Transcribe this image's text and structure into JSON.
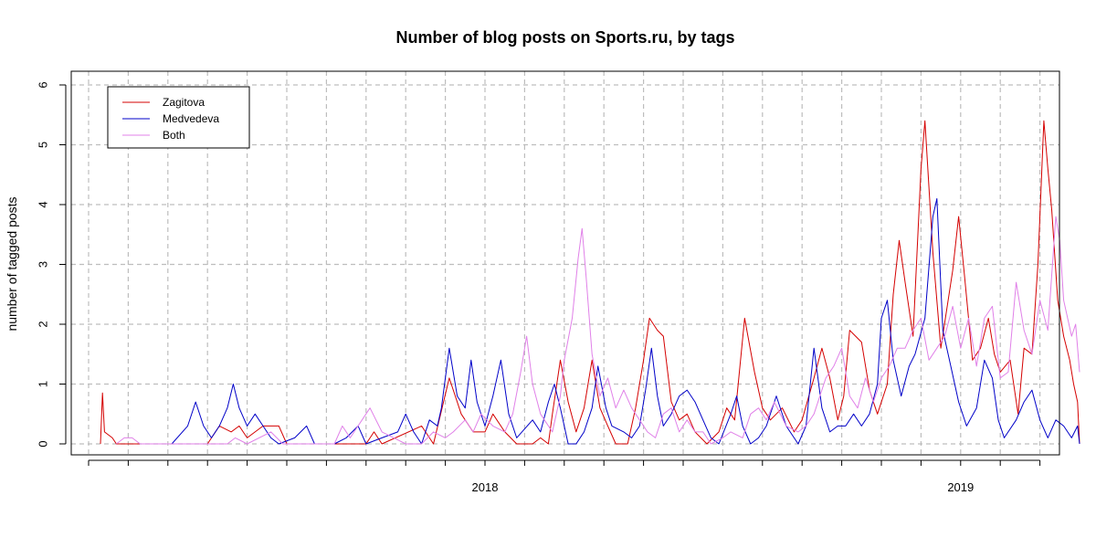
{
  "chart_data": {
    "type": "line",
    "title": "Number of blog posts on Sports.ru, by tags",
    "xlabel": "",
    "ylabel": "number of tagged posts",
    "x_tick_labels": [
      "2018",
      "2019"
    ],
    "y_ticks": [
      0,
      1,
      2,
      3,
      4,
      5,
      6
    ],
    "ylim": [
      0,
      6
    ],
    "grid": true,
    "legend_position": "top-left",
    "x_axis": "month index, 0 = Jan 2018",
    "series": [
      {
        "name": "Zagitova",
        "color": "#d40000",
        "points": [
          [
            -9.7,
            0
          ],
          [
            -9.65,
            0.85
          ],
          [
            -9.6,
            0.2
          ],
          [
            -9.4,
            0.1
          ],
          [
            -9.3,
            0
          ],
          [
            -8,
            0
          ],
          [
            -7,
            0
          ],
          [
            -6.7,
            0.3
          ],
          [
            -6.4,
            0.2
          ],
          [
            -6.2,
            0.3
          ],
          [
            -6,
            0.1
          ],
          [
            -5.6,
            0.3
          ],
          [
            -5.2,
            0.3
          ],
          [
            -5,
            0
          ],
          [
            -4,
            0
          ],
          [
            -3,
            0
          ],
          [
            -2.8,
            0.2
          ],
          [
            -2.6,
            0
          ],
          [
            -1.6,
            0.3
          ],
          [
            -1.3,
            0
          ],
          [
            -0.9,
            1.1
          ],
          [
            -0.6,
            0.5
          ],
          [
            -0.3,
            0.2
          ],
          [
            0,
            0.2
          ],
          [
            0.2,
            0.5
          ],
          [
            0.5,
            0.2
          ],
          [
            0.8,
            0
          ],
          [
            1.2,
            0
          ],
          [
            1.4,
            0.1
          ],
          [
            1.6,
            0
          ],
          [
            1.7,
            0.5
          ],
          [
            1.9,
            1.4
          ],
          [
            2.1,
            0.7
          ],
          [
            2.3,
            0.2
          ],
          [
            2.5,
            0.6
          ],
          [
            2.7,
            1.4
          ],
          [
            2.9,
            0.6
          ],
          [
            3.1,
            0.3
          ],
          [
            3.3,
            0
          ],
          [
            3.6,
            0
          ],
          [
            3.8,
            0.6
          ],
          [
            4,
            1.4
          ],
          [
            4.15,
            2.1
          ],
          [
            4.35,
            1.9
          ],
          [
            4.5,
            1.8
          ],
          [
            4.7,
            0.7
          ],
          [
            4.9,
            0.4
          ],
          [
            5.1,
            0.5
          ],
          [
            5.3,
            0.2
          ],
          [
            5.6,
            0
          ],
          [
            5.9,
            0.2
          ],
          [
            6.1,
            0.6
          ],
          [
            6.3,
            0.4
          ],
          [
            6.55,
            2.1
          ],
          [
            6.8,
            1.2
          ],
          [
            7,
            0.6
          ],
          [
            7.2,
            0.4
          ],
          [
            7.5,
            0.6
          ],
          [
            7.8,
            0.2
          ],
          [
            8,
            0.4
          ],
          [
            8.3,
            1.1
          ],
          [
            8.5,
            1.6
          ],
          [
            8.7,
            1.1
          ],
          [
            8.9,
            0.4
          ],
          [
            9.05,
            0.8
          ],
          [
            9.2,
            1.9
          ],
          [
            9.5,
            1.7
          ],
          [
            9.7,
            0.9
          ],
          [
            9.9,
            0.5
          ],
          [
            10.15,
            1
          ],
          [
            10.3,
            2.5
          ],
          [
            10.45,
            3.4
          ],
          [
            10.6,
            2.7
          ],
          [
            10.8,
            1.8
          ],
          [
            11,
            4.6
          ],
          [
            11.1,
            5.4
          ],
          [
            11.3,
            3.2
          ],
          [
            11.5,
            1.6
          ],
          [
            11.8,
            2.9
          ],
          [
            11.95,
            3.8
          ],
          [
            12.1,
            2.8
          ],
          [
            12.3,
            1.4
          ],
          [
            12.5,
            1.6
          ],
          [
            12.7,
            2.1
          ],
          [
            12.85,
            1.5
          ],
          [
            13,
            1.2
          ],
          [
            13.25,
            1.4
          ],
          [
            13.45,
            0.5
          ],
          [
            13.6,
            1.6
          ],
          [
            13.8,
            1.5
          ],
          [
            13.95,
            3
          ],
          [
            14.1,
            5.4
          ],
          [
            14.2,
            4.6
          ],
          [
            14.3,
            3.9
          ],
          [
            14.45,
            2.4
          ],
          [
            14.6,
            1.8
          ],
          [
            14.75,
            1.4
          ],
          [
            14.85,
            1
          ],
          [
            14.95,
            0.7
          ],
          [
            15,
            0
          ]
        ]
      },
      {
        "name": "Medvedeva",
        "color": "#0000c8",
        "points": [
          [
            -7.9,
            0
          ],
          [
            -7.5,
            0.3
          ],
          [
            -7.3,
            0.7
          ],
          [
            -7.1,
            0.3
          ],
          [
            -6.9,
            0.1
          ],
          [
            -6.7,
            0.3
          ],
          [
            -6.5,
            0.6
          ],
          [
            -6.35,
            1
          ],
          [
            -6.2,
            0.6
          ],
          [
            -6,
            0.3
          ],
          [
            -5.8,
            0.5
          ],
          [
            -5.6,
            0.3
          ],
          [
            -5.4,
            0.1
          ],
          [
            -5.2,
            0
          ],
          [
            -4.8,
            0.1
          ],
          [
            -4.5,
            0.3
          ],
          [
            -4.3,
            0
          ],
          [
            -3.8,
            0
          ],
          [
            -3.5,
            0.1
          ],
          [
            -3.2,
            0.3
          ],
          [
            -3,
            0
          ],
          [
            -2.6,
            0.1
          ],
          [
            -2.2,
            0.2
          ],
          [
            -2,
            0.5
          ],
          [
            -1.8,
            0.2
          ],
          [
            -1.6,
            0
          ],
          [
            -1.4,
            0.4
          ],
          [
            -1.2,
            0.3
          ],
          [
            -1.1,
            0.6
          ],
          [
            -0.9,
            1.6
          ],
          [
            -0.7,
            0.8
          ],
          [
            -0.5,
            0.6
          ],
          [
            -0.35,
            1.4
          ],
          [
            -0.2,
            0.7
          ],
          [
            0,
            0.3
          ],
          [
            0.2,
            0.8
          ],
          [
            0.4,
            1.4
          ],
          [
            0.6,
            0.5
          ],
          [
            0.8,
            0.1
          ],
          [
            1.2,
            0.4
          ],
          [
            1.4,
            0.2
          ],
          [
            1.6,
            0.7
          ],
          [
            1.75,
            1
          ],
          [
            1.9,
            0.6
          ],
          [
            2.1,
            0
          ],
          [
            2.3,
            0
          ],
          [
            2.5,
            0.2
          ],
          [
            2.7,
            0.6
          ],
          [
            2.85,
            1.3
          ],
          [
            3.05,
            0.6
          ],
          [
            3.2,
            0.3
          ],
          [
            3.5,
            0.2
          ],
          [
            3.7,
            0.1
          ],
          [
            3.9,
            0.3
          ],
          [
            4.05,
            0.9
          ],
          [
            4.2,
            1.6
          ],
          [
            4.35,
            0.8
          ],
          [
            4.5,
            0.3
          ],
          [
            4.7,
            0.5
          ],
          [
            4.9,
            0.8
          ],
          [
            5.1,
            0.9
          ],
          [
            5.3,
            0.7
          ],
          [
            5.5,
            0.4
          ],
          [
            5.7,
            0.1
          ],
          [
            5.9,
            0
          ],
          [
            6.2,
            0.5
          ],
          [
            6.35,
            0.8
          ],
          [
            6.5,
            0.3
          ],
          [
            6.7,
            0
          ],
          [
            6.9,
            0.1
          ],
          [
            7.1,
            0.3
          ],
          [
            7.35,
            0.8
          ],
          [
            7.6,
            0.3
          ],
          [
            7.9,
            0
          ],
          [
            8.1,
            0.3
          ],
          [
            8.3,
            1.6
          ],
          [
            8.5,
            0.6
          ],
          [
            8.7,
            0.2
          ],
          [
            8.9,
            0.3
          ],
          [
            9.1,
            0.3
          ],
          [
            9.3,
            0.5
          ],
          [
            9.5,
            0.3
          ],
          [
            9.7,
            0.5
          ],
          [
            9.9,
            1
          ],
          [
            10,
            2.1
          ],
          [
            10.15,
            2.4
          ],
          [
            10.3,
            1.4
          ],
          [
            10.5,
            0.8
          ],
          [
            10.7,
            1.3
          ],
          [
            10.85,
            1.5
          ],
          [
            11.1,
            2.1
          ],
          [
            11.3,
            3.8
          ],
          [
            11.4,
            4.1
          ],
          [
            11.55,
            1.9
          ],
          [
            11.75,
            1.3
          ],
          [
            11.95,
            0.7
          ],
          [
            12.15,
            0.3
          ],
          [
            12.4,
            0.6
          ],
          [
            12.6,
            1.4
          ],
          [
            12.8,
            1.1
          ],
          [
            12.95,
            0.4
          ],
          [
            13.1,
            0.1
          ],
          [
            13.4,
            0.4
          ],
          [
            13.6,
            0.7
          ],
          [
            13.8,
            0.9
          ],
          [
            14,
            0.4
          ],
          [
            14.2,
            0.1
          ],
          [
            14.4,
            0.4
          ],
          [
            14.6,
            0.3
          ],
          [
            14.8,
            0.1
          ],
          [
            14.95,
            0.3
          ],
          [
            15,
            0
          ]
        ]
      },
      {
        "name": "Both",
        "color": "#e080e8",
        "points": [
          [
            -9.3,
            0
          ],
          [
            -9.1,
            0.1
          ],
          [
            -8.9,
            0.1
          ],
          [
            -8.7,
            0
          ],
          [
            -6.5,
            0
          ],
          [
            -6.3,
            0.1
          ],
          [
            -6,
            0
          ],
          [
            -5.4,
            0.2
          ],
          [
            -5.1,
            0
          ],
          [
            -3.8,
            0
          ],
          [
            -3.6,
            0.3
          ],
          [
            -3.4,
            0.1
          ],
          [
            -2.9,
            0.6
          ],
          [
            -2.6,
            0.2
          ],
          [
            -2.3,
            0.1
          ],
          [
            -2,
            0
          ],
          [
            -1.6,
            0
          ],
          [
            -1.3,
            0.2
          ],
          [
            -1,
            0.1
          ],
          [
            -0.8,
            0.2
          ],
          [
            -0.5,
            0.4
          ],
          [
            -0.3,
            0.2
          ],
          [
            -0.1,
            0.5
          ],
          [
            0.2,
            0.3
          ],
          [
            0.5,
            0.2
          ],
          [
            0.7,
            0.5
          ],
          [
            0.9,
            1.2
          ],
          [
            1.05,
            1.8
          ],
          [
            1.2,
            1
          ],
          [
            1.4,
            0.5
          ],
          [
            1.7,
            0.2
          ],
          [
            1.9,
            0.8
          ],
          [
            2,
            1.4
          ],
          [
            2.2,
            2.1
          ],
          [
            2.35,
            3.1
          ],
          [
            2.45,
            3.6
          ],
          [
            2.55,
            2.8
          ],
          [
            2.7,
            1.5
          ],
          [
            2.9,
            0.8
          ],
          [
            3.1,
            1.1
          ],
          [
            3.3,
            0.6
          ],
          [
            3.5,
            0.9
          ],
          [
            3.7,
            0.6
          ],
          [
            3.9,
            0.4
          ],
          [
            4.1,
            0.2
          ],
          [
            4.3,
            0.1
          ],
          [
            4.5,
            0.5
          ],
          [
            4.7,
            0.6
          ],
          [
            4.9,
            0.2
          ],
          [
            5.1,
            0.4
          ],
          [
            5.3,
            0.2
          ],
          [
            5.5,
            0.2
          ],
          [
            5.7,
            0
          ],
          [
            6,
            0.1
          ],
          [
            6.2,
            0.2
          ],
          [
            6.5,
            0.1
          ],
          [
            6.7,
            0.5
          ],
          [
            6.9,
            0.6
          ],
          [
            7.1,
            0.4
          ],
          [
            7.3,
            0.7
          ],
          [
            7.6,
            0.3
          ],
          [
            7.9,
            0.2
          ],
          [
            8.1,
            0.3
          ],
          [
            8.3,
            0.5
          ],
          [
            8.6,
            1.1
          ],
          [
            8.8,
            1.3
          ],
          [
            9,
            1.6
          ],
          [
            9.2,
            0.8
          ],
          [
            9.4,
            0.6
          ],
          [
            9.6,
            1.1
          ],
          [
            9.8,
            0.7
          ],
          [
            10,
            1.1
          ],
          [
            10.2,
            1.3
          ],
          [
            10.4,
            1.6
          ],
          [
            10.6,
            1.6
          ],
          [
            10.8,
            1.9
          ],
          [
            11,
            2.1
          ],
          [
            11.2,
            1.4
          ],
          [
            11.4,
            1.6
          ],
          [
            11.6,
            1.8
          ],
          [
            11.8,
            2.3
          ],
          [
            12,
            1.6
          ],
          [
            12.2,
            2.1
          ],
          [
            12.4,
            1.3
          ],
          [
            12.6,
            2.1
          ],
          [
            12.8,
            2.3
          ],
          [
            13,
            1.1
          ],
          [
            13.2,
            1.2
          ],
          [
            13.4,
            2.7
          ],
          [
            13.6,
            1.9
          ],
          [
            13.8,
            1.5
          ],
          [
            14,
            2.4
          ],
          [
            14.2,
            1.9
          ],
          [
            14.4,
            3.8
          ],
          [
            14.5,
            3.4
          ],
          [
            14.6,
            2.4
          ],
          [
            14.8,
            1.8
          ],
          [
            14.9,
            2
          ],
          [
            15,
            1.2
          ]
        ]
      }
    ]
  }
}
